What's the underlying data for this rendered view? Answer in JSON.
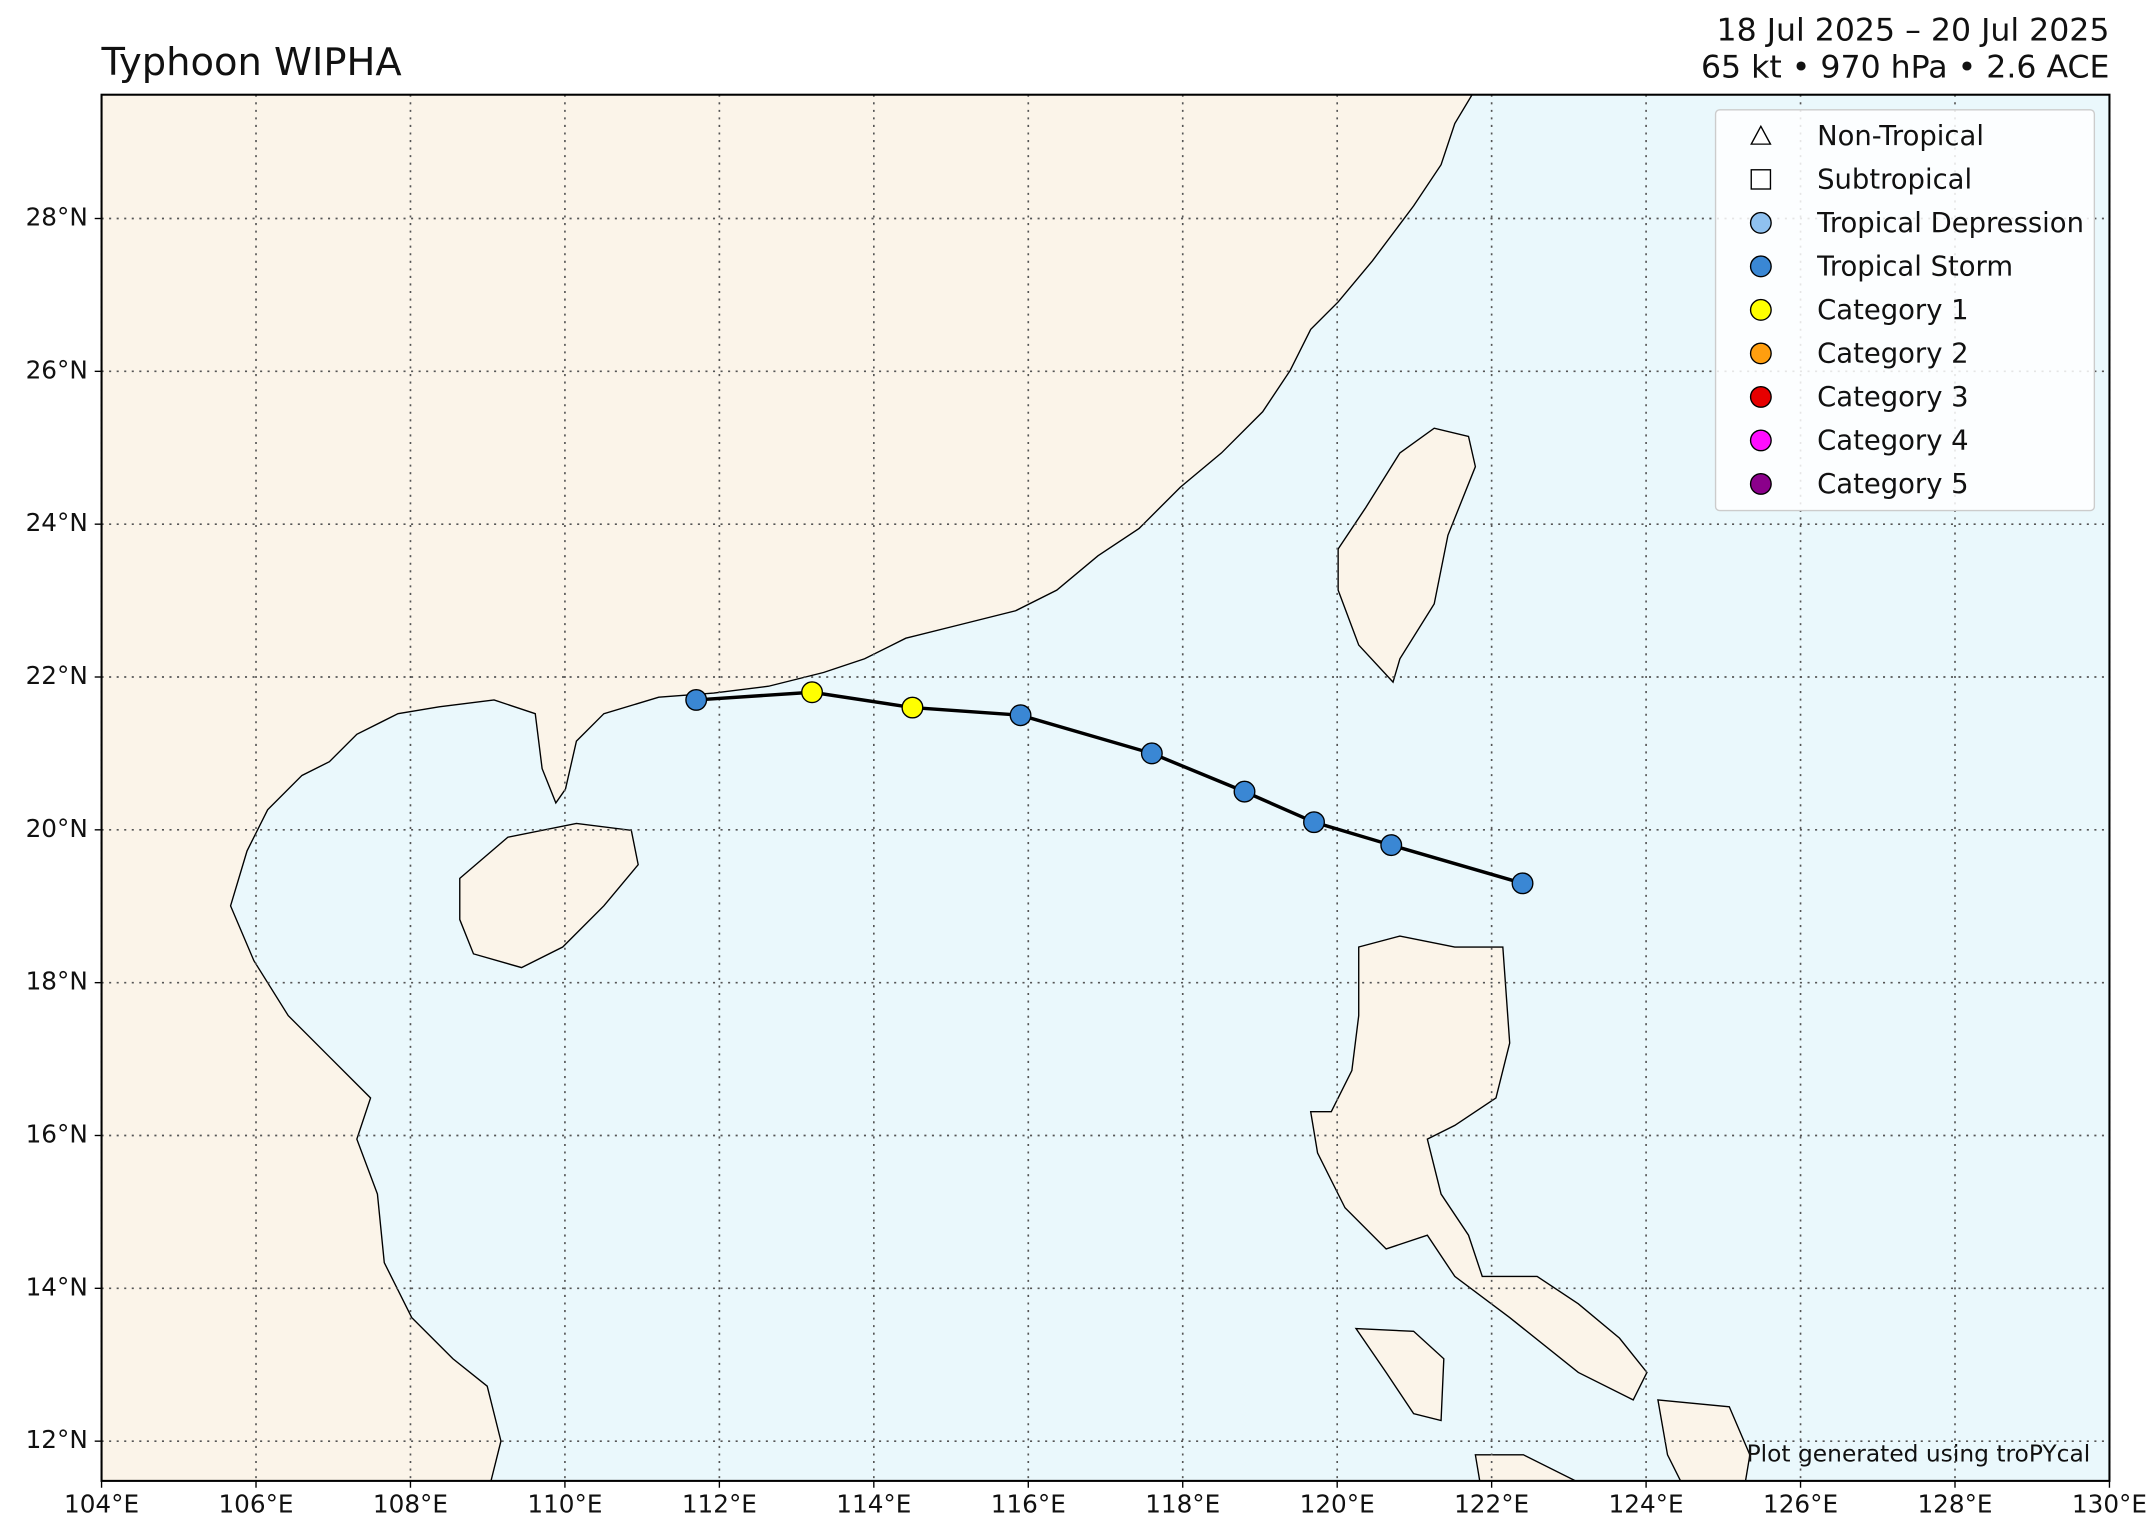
{
  "chart_data": {
    "type": "track",
    "title": "Typhoon WIPHA",
    "subtitle_dates": "18 Jul 2025 – 20 Jul 2025",
    "subtitle_stats": "65 kt • 970 hPa • 2.6 ACE",
    "footer": "Plot generated using troPYcal",
    "x": [
      122.4,
      120.7,
      119.7,
      118.8,
      117.6,
      115.9,
      114.5,
      113.2,
      111.7
    ],
    "values": [
      19.3,
      19.8,
      20.1,
      20.5,
      21.0,
      21.5,
      21.6,
      21.8,
      21.7
    ],
    "point_colors": [
      "#3a87d4",
      "#3a87d4",
      "#3a87d4",
      "#3a87d4",
      "#3a87d4",
      "#3a87d4",
      "#ffff00",
      "#ffff00",
      "#3a87d4"
    ],
    "line_color": "#000000",
    "xlim": [
      104,
      130
    ],
    "ylim": [
      11.48,
      29.62
    ],
    "xticks": [
      {
        "value": 104,
        "label": "104°E"
      },
      {
        "value": 106,
        "label": "106°E"
      },
      {
        "value": 108,
        "label": "108°E"
      },
      {
        "value": 110,
        "label": "110°E"
      },
      {
        "value": 112,
        "label": "112°E"
      },
      {
        "value": 114,
        "label": "114°E"
      },
      {
        "value": 116,
        "label": "116°E"
      },
      {
        "value": 118,
        "label": "118°E"
      },
      {
        "value": 120,
        "label": "120°E"
      },
      {
        "value": 122,
        "label": "122°E"
      },
      {
        "value": 124,
        "label": "124°E"
      },
      {
        "value": 126,
        "label": "126°E"
      },
      {
        "value": 128,
        "label": "128°E"
      },
      {
        "value": 130,
        "label": "130°E"
      }
    ],
    "yticks": [
      {
        "value": 12,
        "label": "12°N"
      },
      {
        "value": 14,
        "label": "14°N"
      },
      {
        "value": 16,
        "label": "16°N"
      },
      {
        "value": 18,
        "label": "18°N"
      },
      {
        "value": 20,
        "label": "20°N"
      },
      {
        "value": 22,
        "label": "22°N"
      },
      {
        "value": 24,
        "label": "24°N"
      },
      {
        "value": 26,
        "label": "26°N"
      },
      {
        "value": 28,
        "label": "28°N"
      }
    ],
    "grid": true,
    "legend_position": "upper right",
    "legend": [
      {
        "label": "Non-Tropical",
        "marker": "triangle",
        "color": "#ffffff"
      },
      {
        "label": "Subtropical",
        "marker": "square",
        "color": "#ffffff"
      },
      {
        "label": "Tropical Depression",
        "marker": "circle",
        "color": "#8fc1ef"
      },
      {
        "label": "Tropical Storm",
        "marker": "circle",
        "color": "#3a87d4"
      },
      {
        "label": "Category 1",
        "marker": "circle",
        "color": "#ffff00"
      },
      {
        "label": "Category 2",
        "marker": "circle",
        "color": "#ff9e0f"
      },
      {
        "label": "Category 3",
        "marker": "circle",
        "color": "#e60000"
      },
      {
        "label": "Category 4",
        "marker": "circle",
        "color": "#ff0dff"
      },
      {
        "label": "Category 5",
        "marker": "circle",
        "color": "#8b008b"
      }
    ]
  }
}
